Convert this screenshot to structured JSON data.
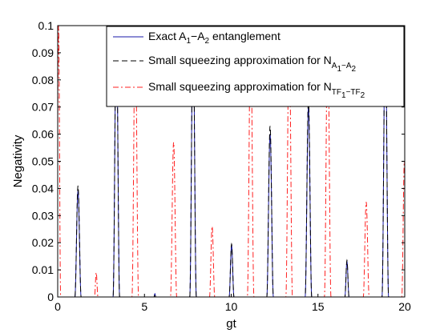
{
  "chart_data": {
    "type": "line",
    "title": "",
    "xlabel": "gt",
    "ylabel": "Negativity",
    "xlim": [
      0,
      20
    ],
    "ylim": [
      0,
      0.1
    ],
    "x_ticks": [
      "0",
      "5",
      "10",
      "15",
      "20"
    ],
    "x_tick_values": [
      0,
      5,
      10,
      15,
      20
    ],
    "y_ticks": [
      "0",
      "0.01",
      "0.02",
      "0.03",
      "0.04",
      "0.05",
      "0.06",
      "0.07",
      "0.08",
      "0.09",
      "0.1"
    ],
    "y_tick_values": [
      0,
      0.01,
      0.02,
      0.03,
      0.04,
      0.05,
      0.06,
      0.07,
      0.08,
      0.09,
      0.1
    ],
    "grid": false,
    "legend_position": "top-right",
    "series": [
      {
        "name": "Exact A1−A2 entanglement",
        "legend_main": "Exact A",
        "legend_sub1": "1",
        "legend_mid": "−A",
        "legend_sub2": "2",
        "legend_tail": " entanglement",
        "color": "#1a1aa8",
        "dash": "solid",
        "peaks": [
          {
            "x": 1.17,
            "y": 0.039,
            "w": 0.18
          },
          {
            "x": 3.38,
            "y": 0.1,
            "w": 0.19
          },
          {
            "x": 5.6,
            "y": 0.0012,
            "w": 0.05
          },
          {
            "x": 7.8,
            "y": 0.1,
            "w": 0.19
          },
          {
            "x": 10.02,
            "y": 0.019,
            "w": 0.14
          },
          {
            "x": 12.24,
            "y": 0.06,
            "w": 0.19
          },
          {
            "x": 14.45,
            "y": 0.07,
            "w": 0.19
          },
          {
            "x": 16.67,
            "y": 0.013,
            "w": 0.12
          },
          {
            "x": 18.88,
            "y": 0.1,
            "w": 0.19
          }
        ]
      },
      {
        "name": "Small squeezing approximation for NA1−A2",
        "legend_main": "Small squeezing approximation for N",
        "legend_sub1": "A",
        "legend_sub2": "1",
        "legend_sub3": "−A",
        "legend_sub4": "2",
        "color": "#000000",
        "dash": "dashed",
        "peaks": [
          {
            "x": 1.17,
            "y": 0.041,
            "w": 0.18
          },
          {
            "x": 3.38,
            "y": 0.1,
            "w": 0.19
          },
          {
            "x": 5.6,
            "y": 0.0012,
            "w": 0.05
          },
          {
            "x": 7.8,
            "y": 0.1,
            "w": 0.19
          },
          {
            "x": 10.02,
            "y": 0.0195,
            "w": 0.14
          },
          {
            "x": 12.24,
            "y": 0.063,
            "w": 0.19
          },
          {
            "x": 14.45,
            "y": 0.073,
            "w": 0.19
          },
          {
            "x": 16.67,
            "y": 0.0135,
            "w": 0.12
          },
          {
            "x": 18.88,
            "y": 0.1,
            "w": 0.19
          }
        ]
      },
      {
        "name": "Small squeezing approximation for NTF1−TF2",
        "legend_main": "Small squeezing approximation for N",
        "legend_sub1": "TF",
        "legend_sub2": "1",
        "legend_sub3": "−TF",
        "legend_sub4": "2",
        "color": "#ff2020",
        "dash": "dashdot",
        "peaks": [
          {
            "x": 0.05,
            "y": 0.1,
            "w": 0.12
          },
          {
            "x": 2.22,
            "y": 0.009,
            "w": 0.1
          },
          {
            "x": 4.47,
            "y": 0.1,
            "w": 0.19
          },
          {
            "x": 6.68,
            "y": 0.057,
            "w": 0.18
          },
          {
            "x": 8.9,
            "y": 0.026,
            "w": 0.15
          },
          {
            "x": 11.12,
            "y": 0.1,
            "w": 0.19
          },
          {
            "x": 13.34,
            "y": 0.1,
            "w": 0.19
          },
          {
            "x": 15.56,
            "y": 0.1,
            "w": 0.19
          },
          {
            "x": 17.78,
            "y": 0.035,
            "w": 0.17
          },
          {
            "x": 19.98,
            "y": 0.05,
            "w": 0.15
          }
        ]
      }
    ]
  }
}
